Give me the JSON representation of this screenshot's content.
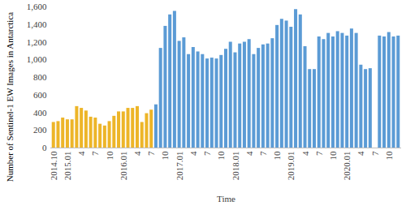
{
  "chart_data": {
    "type": "bar",
    "x_label": "Time",
    "y_label": "Number of Sentinel-1 EW Images in Antarctica",
    "categories": [
      "2014.10",
      null,
      null,
      "2015.01",
      null,
      null,
      "4",
      null,
      null,
      "7",
      null,
      null,
      "10",
      null,
      null,
      "2016.01",
      null,
      null,
      "4",
      null,
      null,
      "7",
      null,
      null,
      "10",
      null,
      null,
      "2017.01",
      null,
      null,
      "4",
      null,
      null,
      "7",
      null,
      null,
      "10",
      null,
      null,
      "2018.01",
      null,
      null,
      "4",
      null,
      null,
      "7",
      null,
      null,
      "10",
      null,
      null,
      "2019.01",
      null,
      null,
      "4",
      null,
      null,
      "7",
      null,
      null,
      "10",
      null,
      null,
      "2020.01",
      null,
      null,
      "4",
      null,
      null,
      "7",
      null,
      null,
      "10",
      null,
      null
    ],
    "values": [
      290,
      300,
      340,
      320,
      320,
      470,
      450,
      420,
      350,
      340,
      270,
      250,
      300,
      360,
      410,
      410,
      450,
      450,
      470,
      290,
      390,
      430,
      490,
      1130,
      1380,
      1510,
      1550,
      1210,
      1250,
      1060,
      1140,
      1090,
      1060,
      1010,
      1020,
      1010,
      1050,
      1120,
      1200,
      1080,
      1180,
      1200,
      1230,
      1060,
      1130,
      1170,
      1180,
      1240,
      1390,
      1460,
      1440,
      1370,
      1570,
      1510,
      1150,
      890,
      890,
      1260,
      1230,
      1300,
      1260,
      1320,
      1300,
      1270,
      1350,
      1300,
      940,
      890,
      900,
      null,
      1270,
      1260,
      1310,
      1260,
      1270
    ],
    "colors": [
      "#EDB528",
      "#EDB528",
      "#EDB528",
      "#EDB528",
      "#EDB528",
      "#EDB528",
      "#EDB528",
      "#EDB528",
      "#EDB528",
      "#EDB528",
      "#EDB528",
      "#EDB528",
      "#EDB528",
      "#EDB528",
      "#EDB528",
      "#EDB528",
      "#EDB528",
      "#EDB528",
      "#EDB528",
      "#EDB528",
      "#EDB528",
      "#EDB528",
      "#5B9BD5",
      "#5B9BD5",
      "#5B9BD5",
      "#5B9BD5",
      "#5B9BD5",
      "#5B9BD5",
      "#5B9BD5",
      "#5B9BD5",
      "#5B9BD5",
      "#5B9BD5",
      "#5B9BD5",
      "#5B9BD5",
      "#5B9BD5",
      "#5B9BD5",
      "#5B9BD5",
      "#5B9BD5",
      "#5B9BD5",
      "#5B9BD5",
      "#5B9BD5",
      "#5B9BD5",
      "#5B9BD5",
      "#5B9BD5",
      "#5B9BD5",
      "#5B9BD5",
      "#5B9BD5",
      "#5B9BD5",
      "#5B9BD5",
      "#5B9BD5",
      "#5B9BD5",
      "#5B9BD5",
      "#5B9BD5",
      "#5B9BD5",
      "#5B9BD5",
      "#5B9BD5",
      "#5B9BD5",
      "#5B9BD5",
      "#5B9BD5",
      "#5B9BD5",
      "#5B9BD5",
      "#5B9BD5",
      "#5B9BD5",
      "#5B9BD5",
      "#5B9BD5",
      "#5B9BD5",
      "#5B9BD5",
      "#5B9BD5",
      "#5B9BD5",
      "#5B9BD5",
      "#5B9BD5",
      "#5B9BD5",
      "#5B9BD5",
      "#5B9BD5",
      "#5B9BD5"
    ],
    "ylim": [
      0,
      1600
    ],
    "yticks": [
      0,
      200,
      400,
      600,
      800,
      1000,
      1200,
      1400,
      1600
    ],
    "grid": false
  }
}
